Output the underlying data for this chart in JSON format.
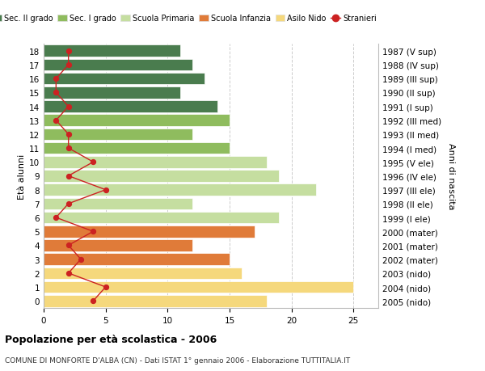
{
  "ages": [
    18,
    17,
    16,
    15,
    14,
    13,
    12,
    11,
    10,
    9,
    8,
    7,
    6,
    5,
    4,
    3,
    2,
    1,
    0
  ],
  "years": [
    "1987 (V sup)",
    "1988 (IV sup)",
    "1989 (III sup)",
    "1990 (II sup)",
    "1991 (I sup)",
    "1992 (III med)",
    "1993 (II med)",
    "1994 (I med)",
    "1995 (V ele)",
    "1996 (IV ele)",
    "1997 (III ele)",
    "1998 (II ele)",
    "1999 (I ele)",
    "2000 (mater)",
    "2001 (mater)",
    "2002 (mater)",
    "2003 (nido)",
    "2004 (nido)",
    "2005 (nido)"
  ],
  "bar_values": [
    11,
    12,
    13,
    11,
    14,
    15,
    12,
    15,
    18,
    19,
    22,
    12,
    19,
    17,
    12,
    15,
    16,
    25,
    18
  ],
  "bar_colors": [
    "#4a7c4e",
    "#4a7c4e",
    "#4a7c4e",
    "#4a7c4e",
    "#4a7c4e",
    "#8fbc5e",
    "#8fbc5e",
    "#8fbc5e",
    "#c5dea0",
    "#c5dea0",
    "#c5dea0",
    "#c5dea0",
    "#c5dea0",
    "#e07b39",
    "#e07b39",
    "#e07b39",
    "#f5d87c",
    "#f5d87c",
    "#f5d87c"
  ],
  "stranieri_values": [
    2,
    2,
    1,
    1,
    2,
    1,
    2,
    2,
    4,
    2,
    5,
    2,
    1,
    4,
    2,
    3,
    2,
    5,
    4
  ],
  "title": "Popolazione per età scolastica - 2006",
  "subtitle": "COMUNE DI MONFORTE D'ALBA (CN) - Dati ISTAT 1° gennaio 2006 - Elaborazione TUTTITALIA.IT",
  "ylabel_left": "Età alunni",
  "ylabel_right": "Anni di nascita",
  "legend_labels": [
    "Sec. II grado",
    "Sec. I grado",
    "Scuola Primaria",
    "Scuola Infanzia",
    "Asilo Nido",
    "Stranieri"
  ],
  "legend_colors": [
    "#4a7c4e",
    "#8fbc5e",
    "#c5dea0",
    "#e07b39",
    "#f5d87c",
    "#cc2222"
  ],
  "xlim": [
    0,
    27
  ],
  "color_stranieri": "#cc2222",
  "grid_color": "#cccccc",
  "bg_color": "#ffffff",
  "bar_edge_color": "#ffffff"
}
